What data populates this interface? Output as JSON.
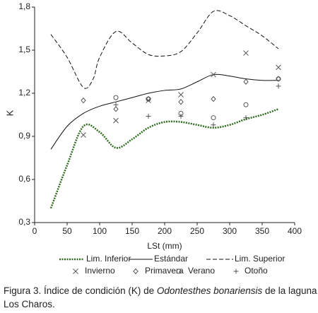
{
  "chart_data": {
    "type": "line",
    "xlabel": "LSt (mm)",
    "ylabel": "K",
    "xlim": [
      0,
      400
    ],
    "xticks": [
      0,
      50,
      100,
      150,
      200,
      250,
      300,
      350,
      400
    ],
    "ylim": [
      0.3,
      1.8
    ],
    "yticks": [
      {
        "value": 0.3,
        "label": "0,3"
      },
      {
        "value": 0.6,
        "label": "0,6"
      },
      {
        "value": 0.9,
        "label": "0,9"
      },
      {
        "value": 1.2,
        "label": "1,2"
      },
      {
        "value": 1.5,
        "label": "1,5"
      },
      {
        "value": 1.8,
        "label": "1,8"
      }
    ],
    "series": [
      {
        "name": "Lim. Inferior",
        "type": "line",
        "dash": "dotted",
        "color": "#2e6b1e",
        "x": [
          25,
          50,
          75,
          100,
          125,
          150,
          175,
          200,
          225,
          250,
          275,
          300,
          325,
          350,
          375
        ],
        "values": [
          0.4,
          0.7,
          0.97,
          0.93,
          0.82,
          0.88,
          0.96,
          1.0,
          1.0,
          0.98,
          0.96,
          0.98,
          1.02,
          1.05,
          1.09
        ]
      },
      {
        "name": "Estándar",
        "type": "line",
        "dash": "solid",
        "color": "#111111",
        "x": [
          25,
          50,
          75,
          100,
          125,
          150,
          175,
          200,
          225,
          250,
          275,
          300,
          325,
          350,
          375
        ],
        "values": [
          0.81,
          0.97,
          1.06,
          1.11,
          1.14,
          1.17,
          1.2,
          1.22,
          1.23,
          1.28,
          1.33,
          1.32,
          1.3,
          1.29,
          1.29
        ]
      },
      {
        "name": "Lim. Superior",
        "type": "line",
        "dash": "dashed",
        "color": "#111111",
        "x": [
          25,
          50,
          75,
          90,
          100,
          125,
          150,
          175,
          200,
          225,
          250,
          275,
          300,
          325,
          350,
          375
        ],
        "values": [
          1.61,
          1.45,
          1.24,
          1.3,
          1.45,
          1.63,
          1.55,
          1.47,
          1.46,
          1.49,
          1.62,
          1.77,
          1.74,
          1.67,
          1.6,
          1.51
        ]
      },
      {
        "name": "Invierno",
        "type": "scatter",
        "marker": "x",
        "color": "#555555",
        "x": [
          75,
          125,
          175,
          225,
          275,
          325,
          375
        ],
        "values": [
          0.91,
          1.01,
          1.15,
          1.19,
          1.33,
          1.48,
          1.38
        ]
      },
      {
        "name": "Primavera",
        "type": "scatter",
        "marker": "diamond",
        "color": "#555555",
        "x": [
          75,
          125,
          175,
          225,
          275,
          325,
          375
        ],
        "values": [
          1.15,
          1.09,
          1.16,
          1.14,
          1.16,
          1.28,
          1.3
        ]
      },
      {
        "name": "Verano",
        "type": "scatter",
        "marker": "circle",
        "color": "#555555",
        "x": [
          125,
          175,
          225,
          275,
          325,
          375
        ],
        "values": [
          1.17,
          1.16,
          1.06,
          1.03,
          1.12,
          1.3
        ]
      },
      {
        "name": "Otoño",
        "type": "scatter",
        "marker": "plus",
        "color": "#555555",
        "x": [
          125,
          175,
          225,
          275,
          325,
          375
        ],
        "values": [
          1.12,
          1.04,
          1.04,
          0.98,
          1.03,
          1.25
        ]
      }
    ]
  },
  "caption": {
    "prefix": "Figura 3. Índice de condición (K) de ",
    "italic": "Odontesthes bonariensis",
    "suffix": " de la laguna Los Charos."
  }
}
